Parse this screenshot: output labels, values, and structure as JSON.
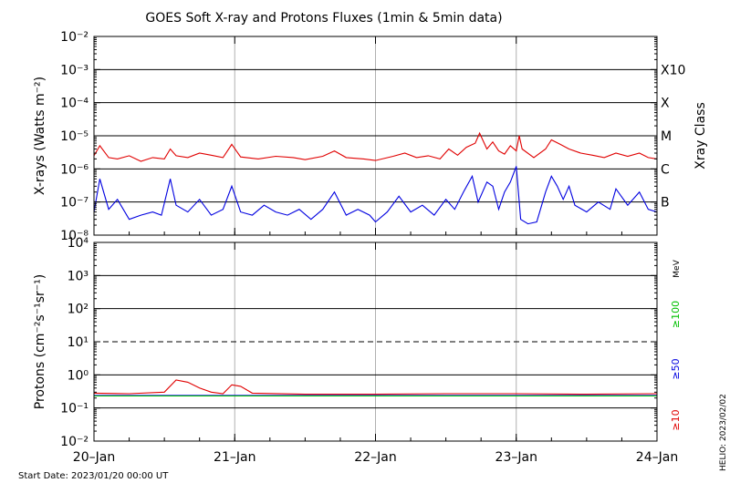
{
  "title": "GOES Soft X-ray and Protons Fluxes   (1min & 5min data)",
  "start_date": "Start Date: 2023/01/20 00:00 UT",
  "credit": "HELIO: 2023/02/02",
  "chart_data": [
    {
      "type": "line",
      "panel": "xray",
      "ylabel": "X-rays (Watts m⁻²)",
      "yscale": "log",
      "ylim": [
        1e-08,
        0.01
      ],
      "y_tick_labels": [
        "10⁻²",
        "10⁻³",
        "10⁻⁴",
        "10⁻⁵",
        "10⁻⁶",
        "10⁻⁷",
        "10⁻⁸"
      ],
      "y_tick_values": [
        0.01,
        0.001,
        0.0001,
        1e-05,
        1e-06,
        1e-07,
        1e-08
      ],
      "right_axis_label": "Xray Class",
      "class_labels": [
        {
          "label": "X10",
          "value": 0.001
        },
        {
          "label": "X",
          "value": 0.0001
        },
        {
          "label": "M",
          "value": 1e-05
        },
        {
          "label": "C",
          "value": 1e-06
        },
        {
          "label": "B",
          "value": 1e-07
        }
      ],
      "gridlines": [
        0.001,
        0.0001,
        1e-05,
        1e-06,
        1e-07
      ],
      "series": [
        {
          "color": "#e00000",
          "points": [
            [
              "2023-01-20 00:00",
              2.5e-06
            ],
            [
              "2023-01-20 01:00",
              5e-06
            ],
            [
              "2023-01-20 02:30",
              2.2e-06
            ],
            [
              "2023-01-20 04:00",
              2e-06
            ],
            [
              "2023-01-20 06:00",
              2.5e-06
            ],
            [
              "2023-01-20 08:00",
              1.7e-06
            ],
            [
              "2023-01-20 10:00",
              2.2e-06
            ],
            [
              "2023-01-20 12:00",
              2e-06
            ],
            [
              "2023-01-20 13:00",
              4e-06
            ],
            [
              "2023-01-20 14:00",
              2.5e-06
            ],
            [
              "2023-01-20 16:00",
              2.2e-06
            ],
            [
              "2023-01-20 18:00",
              3e-06
            ],
            [
              "2023-01-20 20:00",
              2.6e-06
            ],
            [
              "2023-01-20 22:00",
              2.2e-06
            ],
            [
              "2023-01-20 23:30",
              5.5e-06
            ],
            [
              "2023-01-21 01:00",
              2.3e-06
            ],
            [
              "2023-01-21 04:00",
              2e-06
            ],
            [
              "2023-01-21 07:00",
              2.4e-06
            ],
            [
              "2023-01-21 10:00",
              2.2e-06
            ],
            [
              "2023-01-21 12:00",
              1.9e-06
            ],
            [
              "2023-01-21 15:00",
              2.4e-06
            ],
            [
              "2023-01-21 17:00",
              3.5e-06
            ],
            [
              "2023-01-21 19:00",
              2.2e-06
            ],
            [
              "2023-01-21 22:00",
              2e-06
            ],
            [
              "2023-01-22 00:00",
              1.8e-06
            ],
            [
              "2023-01-22 03:00",
              2.4e-06
            ],
            [
              "2023-01-22 05:00",
              3e-06
            ],
            [
              "2023-01-22 07:00",
              2.2e-06
            ],
            [
              "2023-01-22 09:00",
              2.5e-06
            ],
            [
              "2023-01-22 11:00",
              2e-06
            ],
            [
              "2023-01-22 12:30",
              4e-06
            ],
            [
              "2023-01-22 14:00",
              2.6e-06
            ],
            [
              "2023-01-22 15:30",
              4.5e-06
            ],
            [
              "2023-01-22 17:00",
              6e-06
            ],
            [
              "2023-01-22 17:45",
              1.2e-05
            ],
            [
              "2023-01-22 19:00",
              4e-06
            ],
            [
              "2023-01-22 20:00",
              6.5e-06
            ],
            [
              "2023-01-22 21:00",
              3.5e-06
            ],
            [
              "2023-01-22 22:00",
              2.8e-06
            ],
            [
              "2023-01-22 23:00",
              5e-06
            ],
            [
              "2023-01-23 00:00",
              3.5e-06
            ],
            [
              "2023-01-23 00:30",
              1e-05
            ],
            [
              "2023-01-23 01:00",
              4e-06
            ],
            [
              "2023-01-23 03:00",
              2.2e-06
            ],
            [
              "2023-01-23 05:00",
              4e-06
            ],
            [
              "2023-01-23 06:00",
              7.5e-06
            ],
            [
              "2023-01-23 07:30",
              5.5e-06
            ],
            [
              "2023-01-23 09:00",
              4e-06
            ],
            [
              "2023-01-23 11:00",
              3e-06
            ],
            [
              "2023-01-23 13:00",
              2.6e-06
            ],
            [
              "2023-01-23 15:00",
              2.2e-06
            ],
            [
              "2023-01-23 17:00",
              3e-06
            ],
            [
              "2023-01-23 19:00",
              2.4e-06
            ],
            [
              "2023-01-23 21:00",
              3e-06
            ],
            [
              "2023-01-23 22:30",
              2.2e-06
            ],
            [
              "2023-01-24 00:00",
              2e-06
            ]
          ]
        },
        {
          "color": "#0000e0",
          "points": [
            [
              "2023-01-20 00:00",
              5e-08
            ],
            [
              "2023-01-20 01:00",
              5e-07
            ],
            [
              "2023-01-20 02:30",
              6e-08
            ],
            [
              "2023-01-20 04:00",
              1.2e-07
            ],
            [
              "2023-01-20 06:00",
              3e-08
            ],
            [
              "2023-01-20 08:00",
              4e-08
            ],
            [
              "2023-01-20 10:00",
              5e-08
            ],
            [
              "2023-01-20 11:30",
              4e-08
            ],
            [
              "2023-01-20 13:00",
              5e-07
            ],
            [
              "2023-01-20 14:00",
              8e-08
            ],
            [
              "2023-01-20 16:00",
              5e-08
            ],
            [
              "2023-01-20 18:00",
              1.2e-07
            ],
            [
              "2023-01-20 20:00",
              4e-08
            ],
            [
              "2023-01-20 22:00",
              6e-08
            ],
            [
              "2023-01-20 23:30",
              3e-07
            ],
            [
              "2023-01-21 01:00",
              5e-08
            ],
            [
              "2023-01-21 03:00",
              4e-08
            ],
            [
              "2023-01-21 05:00",
              8e-08
            ],
            [
              "2023-01-21 07:00",
              5e-08
            ],
            [
              "2023-01-21 09:00",
              4e-08
            ],
            [
              "2023-01-21 11:00",
              6e-08
            ],
            [
              "2023-01-21 13:00",
              3e-08
            ],
            [
              "2023-01-21 15:00",
              6e-08
            ],
            [
              "2023-01-21 17:00",
              2e-07
            ],
            [
              "2023-01-21 19:00",
              4e-08
            ],
            [
              "2023-01-21 21:00",
              6e-08
            ],
            [
              "2023-01-21 23:00",
              4e-08
            ],
            [
              "2023-01-22 00:00",
              2.5e-08
            ],
            [
              "2023-01-22 02:00",
              5e-08
            ],
            [
              "2023-01-22 04:00",
              1.5e-07
            ],
            [
              "2023-01-22 06:00",
              5e-08
            ],
            [
              "2023-01-22 08:00",
              8e-08
            ],
            [
              "2023-01-22 10:00",
              4e-08
            ],
            [
              "2023-01-22 12:00",
              1.2e-07
            ],
            [
              "2023-01-22 13:30",
              6e-08
            ],
            [
              "2023-01-22 15:00",
              2e-07
            ],
            [
              "2023-01-22 16:30",
              6e-07
            ],
            [
              "2023-01-22 17:30",
              1e-07
            ],
            [
              "2023-01-22 19:00",
              4e-07
            ],
            [
              "2023-01-22 20:00",
              3e-07
            ],
            [
              "2023-01-22 21:00",
              6e-08
            ],
            [
              "2023-01-22 22:00",
              2e-07
            ],
            [
              "2023-01-22 23:00",
              4e-07
            ],
            [
              "2023-01-23 00:00",
              1.2e-06
            ],
            [
              "2023-01-23 00:45",
              3e-08
            ],
            [
              "2023-01-23 02:00",
              2.2e-08
            ],
            [
              "2023-01-23 03:30",
              2.5e-08
            ],
            [
              "2023-01-23 05:00",
              2e-07
            ],
            [
              "2023-01-23 06:00",
              6e-07
            ],
            [
              "2023-01-23 07:00",
              3e-07
            ],
            [
              "2023-01-23 08:00",
              1.2e-07
            ],
            [
              "2023-01-23 09:00",
              3e-07
            ],
            [
              "2023-01-23 10:00",
              8e-08
            ],
            [
              "2023-01-23 12:00",
              5e-08
            ],
            [
              "2023-01-23 14:00",
              1e-07
            ],
            [
              "2023-01-23 16:00",
              6e-08
            ],
            [
              "2023-01-23 17:00",
              2.5e-07
            ],
            [
              "2023-01-23 19:00",
              8e-08
            ],
            [
              "2023-01-23 21:00",
              2e-07
            ],
            [
              "2023-01-23 22:30",
              6e-08
            ],
            [
              "2023-01-24 00:00",
              5e-08
            ]
          ]
        }
      ]
    },
    {
      "type": "line",
      "panel": "protons",
      "ylabel": "Protons (cm⁻²s⁻¹sr⁻¹)",
      "yscale": "log",
      "ylim": [
        0.01,
        10000
      ],
      "y_tick_labels": [
        "10⁴",
        "10³",
        "10²",
        "10¹",
        "10⁰",
        "10⁻¹",
        "10⁻²"
      ],
      "y_tick_values": [
        10000,
        1000,
        100,
        10,
        1,
        0.1,
        0.01
      ],
      "gridlines": [
        1000,
        100,
        1,
        0.1
      ],
      "threshold_line": 10,
      "energy_unit": "MeV",
      "series": [
        {
          "name": "≥10",
          "color": "#e00000",
          "points": [
            [
              "2023-01-20 00:00",
              0.28
            ],
            [
              "2023-01-20 06:00",
              0.27
            ],
            [
              "2023-01-20 12:00",
              0.3
            ],
            [
              "2023-01-20 14:00",
              0.7
            ],
            [
              "2023-01-20 16:00",
              0.6
            ],
            [
              "2023-01-20 18:00",
              0.4
            ],
            [
              "2023-01-20 20:00",
              0.3
            ],
            [
              "2023-01-20 22:00",
              0.27
            ],
            [
              "2023-01-20 23:30",
              0.5
            ],
            [
              "2023-01-21 01:00",
              0.45
            ],
            [
              "2023-01-21 03:00",
              0.28
            ],
            [
              "2023-01-21 12:00",
              0.26
            ],
            [
              "2023-01-22 00:00",
              0.26
            ],
            [
              "2023-01-22 12:00",
              0.27
            ],
            [
              "2023-01-23 00:00",
              0.27
            ],
            [
              "2023-01-23 12:00",
              0.26
            ],
            [
              "2023-01-24 00:00",
              0.27
            ]
          ]
        },
        {
          "name": "≥50",
          "color": "#0000e0",
          "points": [
            [
              "2023-01-20 00:00",
              0.24
            ],
            [
              "2023-01-21 00:00",
              0.24
            ],
            [
              "2023-01-22 00:00",
              0.24
            ],
            [
              "2023-01-23 00:00",
              0.24
            ],
            [
              "2023-01-24 00:00",
              0.24
            ]
          ]
        },
        {
          "name": "≥100",
          "color": "#00c000",
          "points": [
            [
              "2023-01-20 00:00",
              0.23
            ],
            [
              "2023-01-21 00:00",
              0.23
            ],
            [
              "2023-01-22 00:00",
              0.23
            ],
            [
              "2023-01-23 00:00",
              0.23
            ],
            [
              "2023-01-24 00:00",
              0.23
            ]
          ]
        }
      ]
    }
  ],
  "x_axis": {
    "range": [
      "2023-01-20 00:00",
      "2023-01-24 00:00"
    ],
    "tick_labels": [
      "20–Jan",
      "21–Jan",
      "22–Jan",
      "23–Jan",
      "24–Jan"
    ],
    "tick_values": [
      "2023-01-20 00:00",
      "2023-01-21 00:00",
      "2023-01-22 00:00",
      "2023-01-23 00:00",
      "2023-01-24 00:00"
    ]
  }
}
